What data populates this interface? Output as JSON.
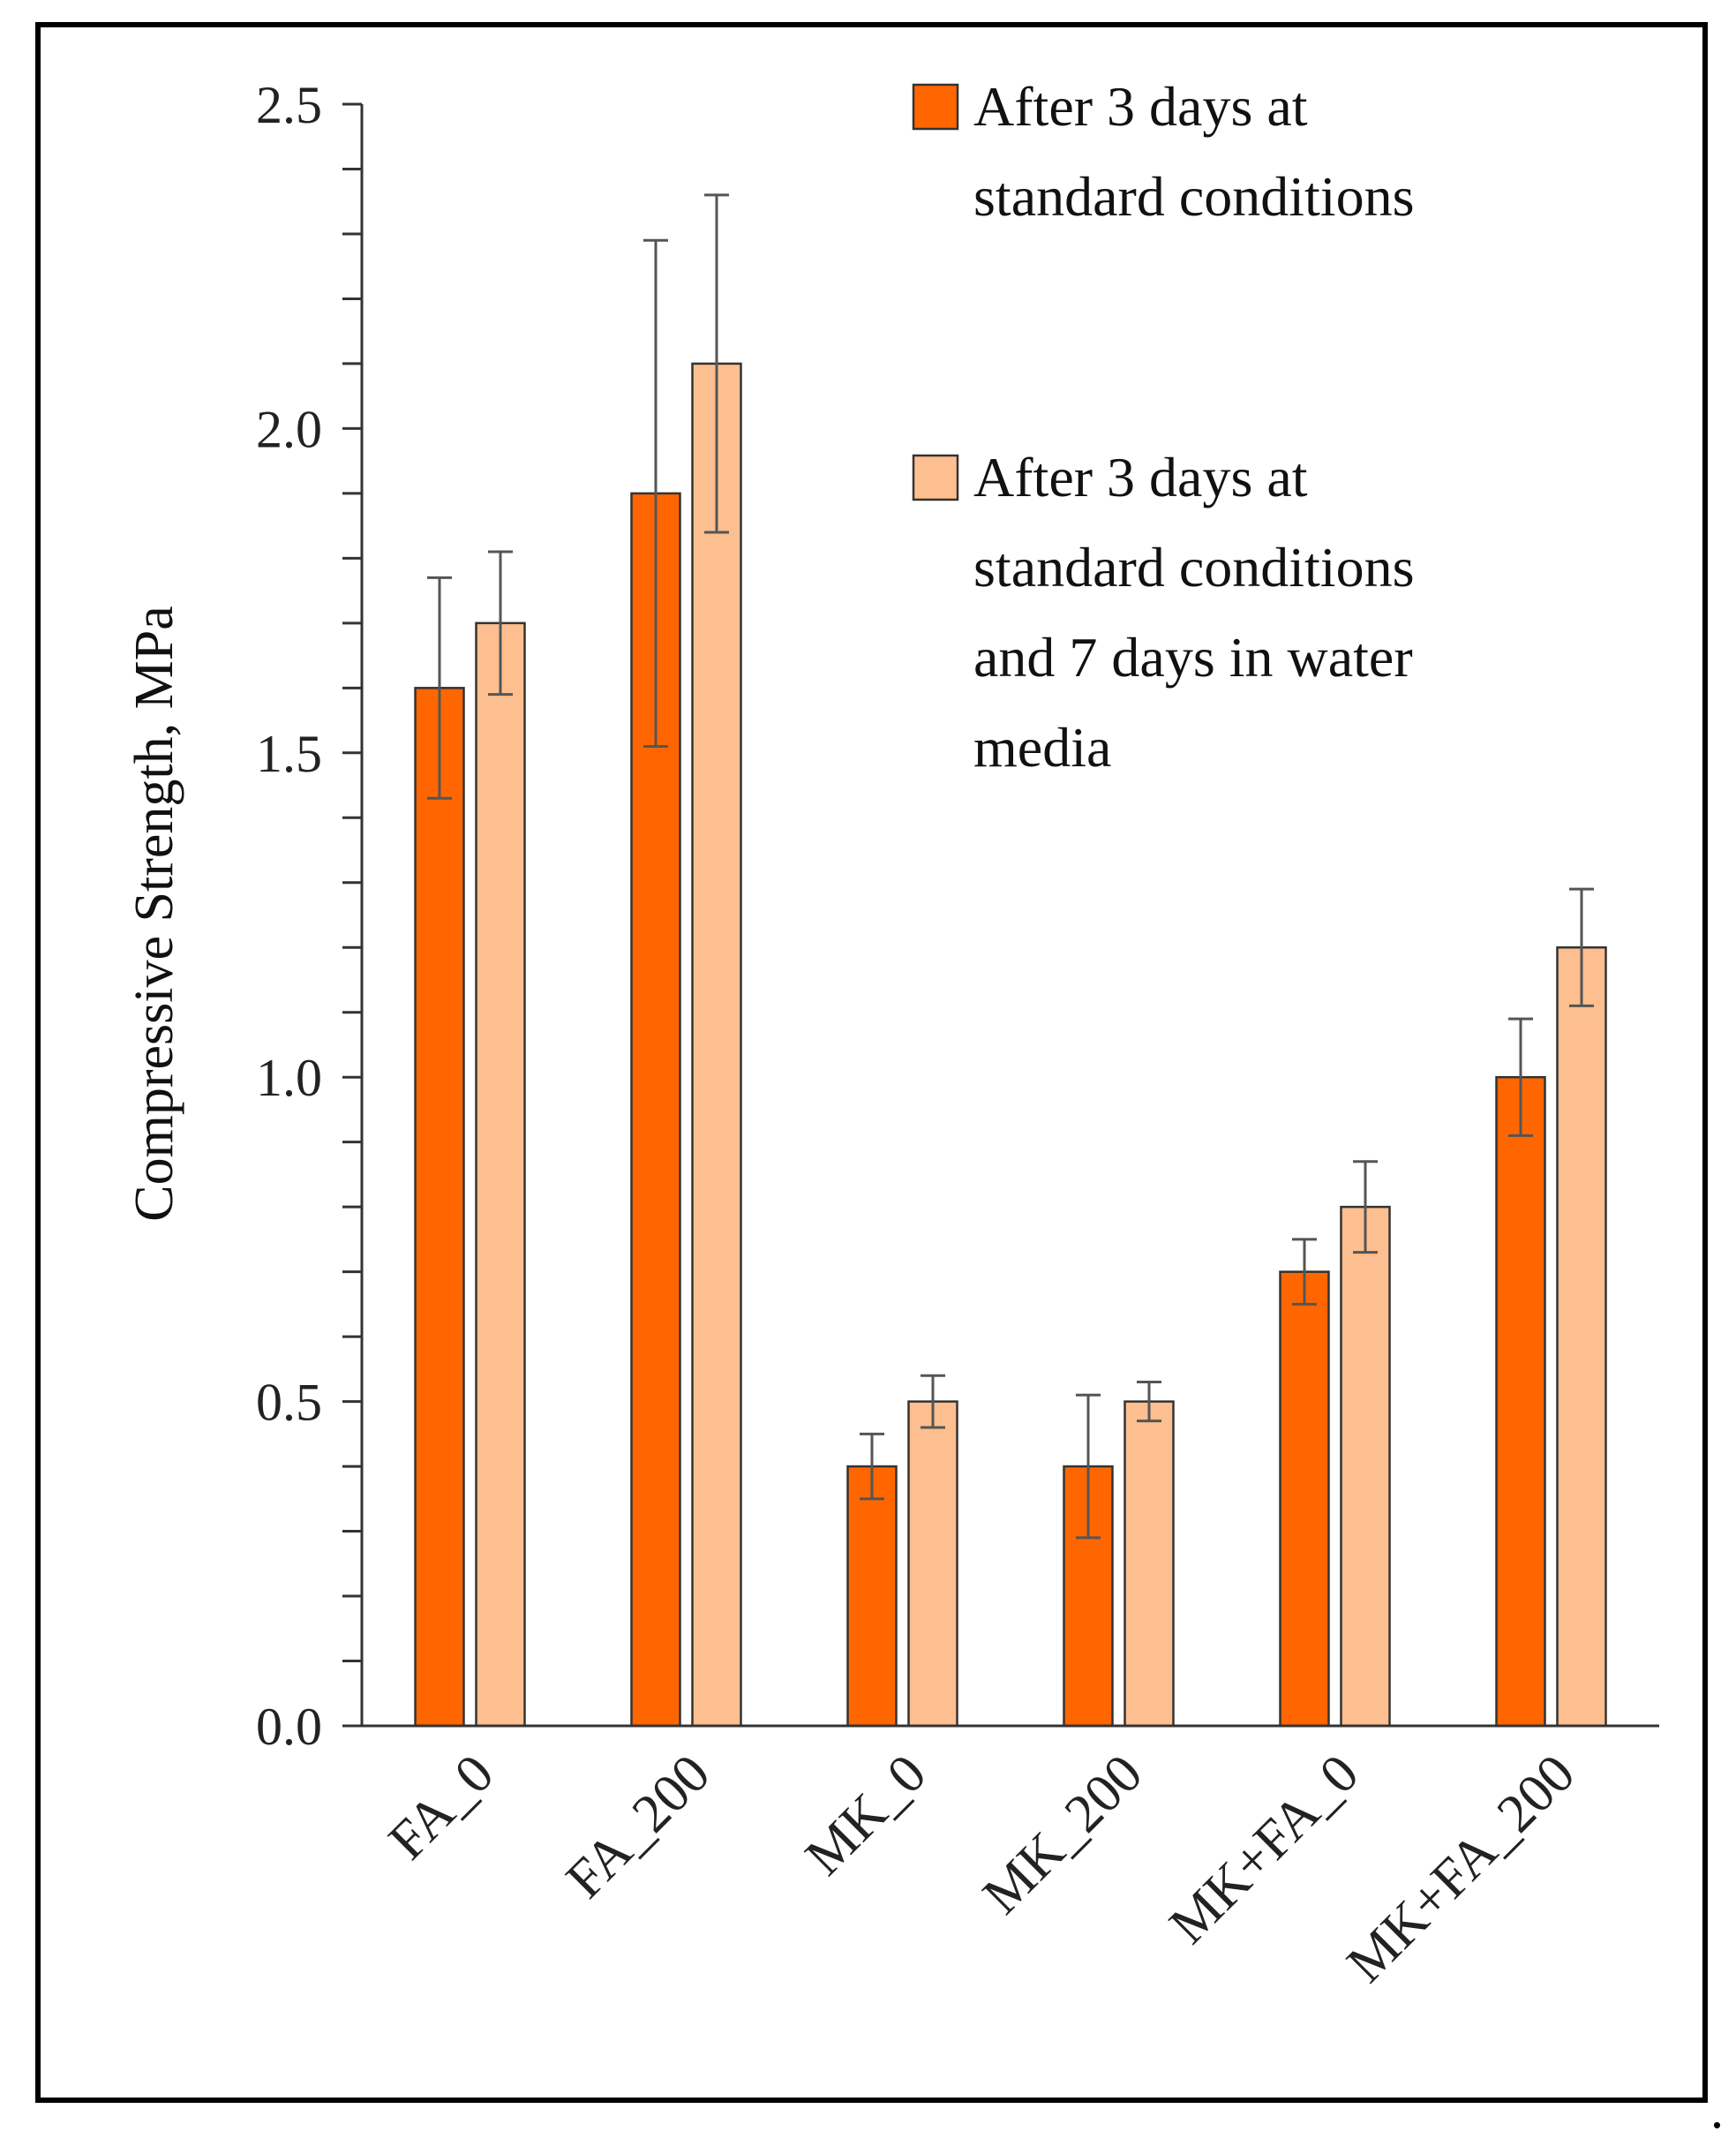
{
  "chart_data": {
    "type": "bar",
    "title": "",
    "xlabel": "",
    "ylabel": "Compressive Strength, MPa",
    "ylim": [
      0,
      2.5
    ],
    "yticks": [
      "0.0",
      "0.5",
      "1.0",
      "1.5",
      "2.0",
      "2.5"
    ],
    "ytick_values": [
      0,
      0.5,
      1.0,
      1.5,
      2.0,
      2.5
    ],
    "minor_tick_step": 0.1,
    "grid": false,
    "legend_position": "top-right",
    "categories": [
      "FA_0",
      "FA_200",
      "MK_0",
      "MK_200",
      "MK+FA_0",
      "MK+FA_200"
    ],
    "series": [
      {
        "name": "After 3 days at standard conditions",
        "legend_lines": [
          "After 3 days at",
          "standard conditions"
        ],
        "color": "#FF6600",
        "values": [
          1.6,
          1.9,
          0.4,
          0.4,
          0.7,
          1.0
        ],
        "error": [
          0.17,
          0.39,
          0.05,
          0.11,
          0.05,
          0.09
        ]
      },
      {
        "name": "After 3 days at standard conditions and 7 days in water media",
        "legend_lines": [
          "After 3 days at",
          "standard conditions",
          "and 7 days in water",
          "media"
        ],
        "color": "#FDBF8F",
        "values": [
          1.7,
          2.1,
          0.5,
          0.5,
          0.8,
          1.2
        ],
        "error": [
          0.11,
          0.26,
          0.04,
          0.03,
          0.07,
          0.09
        ]
      }
    ]
  },
  "colors": {
    "axis": "#333333",
    "error_bar": "#555555",
    "bar_outline": "#333333"
  },
  "trailing_mark": "."
}
